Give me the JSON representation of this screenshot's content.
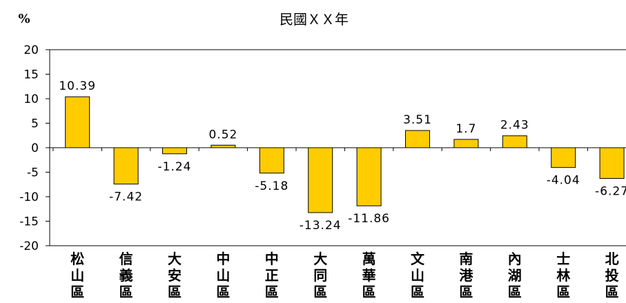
{
  "chart_data": {
    "type": "bar",
    "title": "民國ＸＸ年",
    "ylabel": "%",
    "xlabel": "",
    "categories": [
      "松山區",
      "信義區",
      "大安區",
      "中山區",
      "中正區",
      "大同區",
      "萬華區",
      "文山區",
      "南港區",
      "內湖區",
      "士林區",
      "北投區"
    ],
    "values": [
      10.39,
      -7.42,
      -1.24,
      0.52,
      -5.18,
      -13.24,
      -11.86,
      3.51,
      1.7,
      2.43,
      -4.04,
      -6.27
    ],
    "value_labels": [
      "10.39",
      "-7.42",
      "-1.24",
      "0.52",
      "-5.18",
      "-13.24",
      "-11.86",
      "3.51",
      "1.7",
      "2.43",
      "-4.04",
      "-6.27"
    ],
    "ylim": [
      -20,
      20
    ],
    "yticks": [
      -20,
      -15,
      -10,
      -5,
      0,
      5,
      10,
      15,
      20
    ],
    "grid": false,
    "legend": "none",
    "colors": {
      "bar_fill": "#FFCC00",
      "bar_stroke": "#000000",
      "axis": "#000000"
    }
  }
}
